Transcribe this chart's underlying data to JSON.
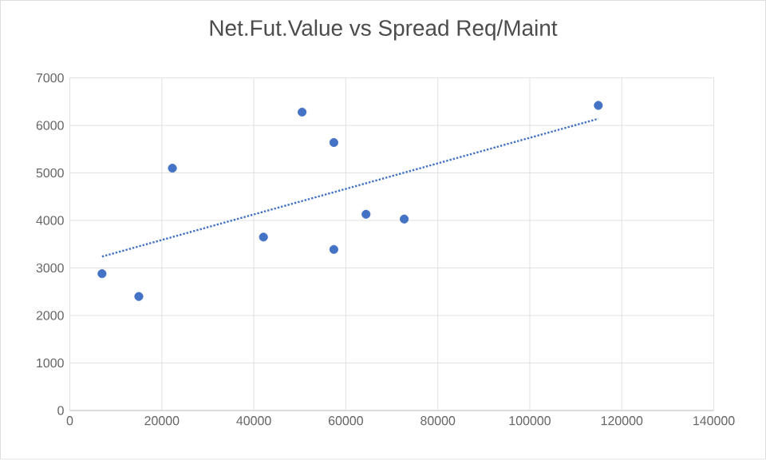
{
  "chart_data": {
    "type": "scatter",
    "title": "Net.Fut.Value vs Spread Req/Maint",
    "xlim": [
      0,
      140000
    ],
    "xticks": [
      0,
      20000,
      40000,
      60000,
      80000,
      100000,
      120000,
      140000
    ],
    "ylim": [
      0,
      7000
    ],
    "yticks": [
      0,
      1000,
      2000,
      3000,
      4000,
      5000,
      6000,
      7000
    ],
    "grid": true,
    "series": [
      {
        "type": "scatter",
        "color": "#4472c4",
        "marker": "circle",
        "x": [
          7000,
          15000,
          22300,
          42100,
          50500,
          57400,
          57400,
          64400,
          72700,
          114900
        ],
        "values": [
          2880,
          2400,
          5100,
          3650,
          6280,
          5640,
          3390,
          4130,
          4030,
          6420
        ]
      },
      {
        "type": "line",
        "color": "#4472c4",
        "marker": "none",
        "line_style": "dotted",
        "x": [
          7000,
          114900
        ],
        "values": [
          3240,
          6140
        ]
      }
    ]
  }
}
